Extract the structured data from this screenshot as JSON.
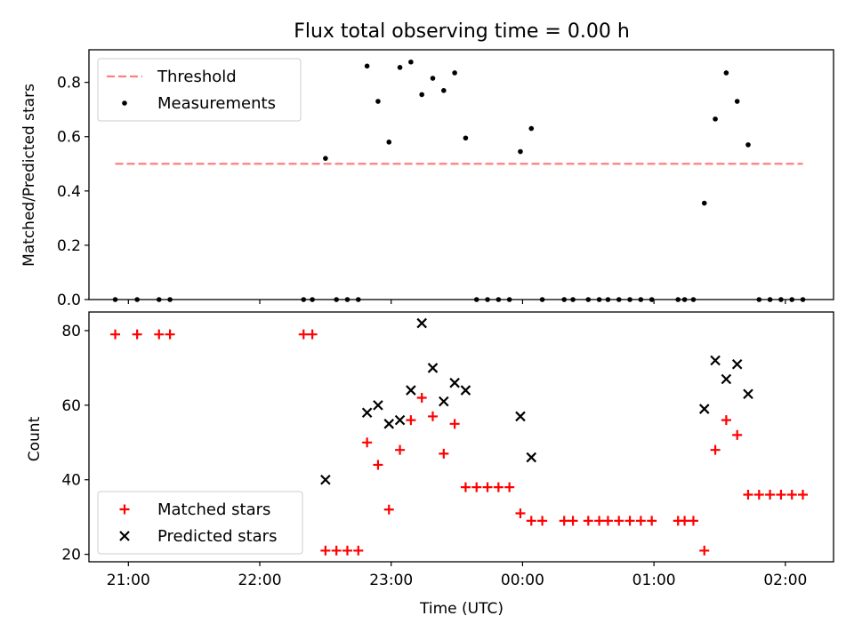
{
  "chart_data": [
    {
      "type": "scatter",
      "title": "Flux total observing time = 0.00 h",
      "xlabel": "",
      "ylabel": "Matched/Predicted stars",
      "ylim": [
        0,
        0.92
      ],
      "yticks": [
        0.0,
        0.2,
        0.4,
        0.6,
        0.8
      ],
      "ytick_labels": [
        "0.0",
        "0.2",
        "0.4",
        "0.6",
        "0.8"
      ],
      "xticks": [
        "21:00",
        "22:00",
        "23:00",
        "00:00",
        "01:00",
        "02:00"
      ],
      "xtick_labels_visible": false,
      "legend_position": "top-left",
      "threshold": {
        "name": "Threshold",
        "value": 0.5,
        "x_start": "20:54",
        "x_end": "02:08",
        "color": "#ff7f7f",
        "style": "dashed"
      },
      "series": [
        {
          "name": "Measurements",
          "color": "#000000",
          "marker": "dot",
          "points": [
            [
              "20:54",
              0.0
            ],
            [
              "21:04",
              0.0
            ],
            [
              "21:14",
              0.0
            ],
            [
              "21:19",
              0.0
            ],
            [
              "22:20",
              0.0
            ],
            [
              "22:24",
              0.0
            ],
            [
              "22:30",
              0.52
            ],
            [
              "22:35",
              0.0
            ],
            [
              "22:40",
              0.0
            ],
            [
              "22:45",
              0.0
            ],
            [
              "22:49",
              0.86
            ],
            [
              "22:54",
              0.73
            ],
            [
              "22:59",
              0.58
            ],
            [
              "23:04",
              0.855
            ],
            [
              "23:09",
              0.875
            ],
            [
              "23:14",
              0.755
            ],
            [
              "23:19",
              0.815
            ],
            [
              "23:24",
              0.77
            ],
            [
              "23:29",
              0.835
            ],
            [
              "23:34",
              0.595
            ],
            [
              "23:39",
              0.0
            ],
            [
              "23:44",
              0.0
            ],
            [
              "23:49",
              0.0
            ],
            [
              "23:54",
              0.0
            ],
            [
              "23:59",
              0.545
            ],
            [
              "00:04",
              0.63
            ],
            [
              "00:09",
              0.0
            ],
            [
              "00:19",
              0.0
            ],
            [
              "00:23",
              0.0
            ],
            [
              "00:30",
              0.0
            ],
            [
              "00:35",
              0.0
            ],
            [
              "00:39",
              0.0
            ],
            [
              "00:44",
              0.0
            ],
            [
              "00:49",
              0.0
            ],
            [
              "00:54",
              0.0
            ],
            [
              "00:59",
              0.0
            ],
            [
              "01:11",
              0.0
            ],
            [
              "01:14",
              0.0
            ],
            [
              "01:18",
              0.0
            ],
            [
              "01:23",
              0.355
            ],
            [
              "01:28",
              0.665
            ],
            [
              "01:33",
              0.835
            ],
            [
              "01:38",
              0.73
            ],
            [
              "01:43",
              0.57
            ],
            [
              "01:48",
              0.0
            ],
            [
              "01:53",
              0.0
            ],
            [
              "01:58",
              0.0
            ],
            [
              "02:03",
              0.0
            ],
            [
              "02:08",
              0.0
            ]
          ]
        }
      ]
    },
    {
      "type": "scatter",
      "title": "",
      "xlabel": "Time (UTC)",
      "ylabel": "Count",
      "ylim": [
        18,
        85
      ],
      "yticks": [
        20,
        40,
        60,
        80
      ],
      "ytick_labels": [
        "20",
        "40",
        "60",
        "80"
      ],
      "xticks": [
        "21:00",
        "22:00",
        "23:00",
        "00:00",
        "01:00",
        "02:00"
      ],
      "xtick_labels": [
        "21:00",
        "22:00",
        "23:00",
        "00:00",
        "01:00",
        "02:00"
      ],
      "legend_position": "bottom-left",
      "series": [
        {
          "name": "Matched stars",
          "color": "#ff0000",
          "marker": "plus",
          "points": [
            [
              "20:54",
              79
            ],
            [
              "21:04",
              79
            ],
            [
              "21:14",
              79
            ],
            [
              "21:19",
              79
            ],
            [
              "22:20",
              79
            ],
            [
              "22:24",
              79
            ],
            [
              "22:30",
              21
            ],
            [
              "22:35",
              21
            ],
            [
              "22:40",
              21
            ],
            [
              "22:45",
              21
            ],
            [
              "22:49",
              50
            ],
            [
              "22:54",
              44
            ],
            [
              "22:59",
              32
            ],
            [
              "23:04",
              48
            ],
            [
              "23:09",
              56
            ],
            [
              "23:14",
              62
            ],
            [
              "23:19",
              57
            ],
            [
              "23:24",
              47
            ],
            [
              "23:29",
              55
            ],
            [
              "23:34",
              38
            ],
            [
              "23:39",
              38
            ],
            [
              "23:44",
              38
            ],
            [
              "23:49",
              38
            ],
            [
              "23:54",
              38
            ],
            [
              "23:59",
              31
            ],
            [
              "00:04",
              29
            ],
            [
              "00:09",
              29
            ],
            [
              "00:19",
              29
            ],
            [
              "00:23",
              29
            ],
            [
              "00:30",
              29
            ],
            [
              "00:35",
              29
            ],
            [
              "00:39",
              29
            ],
            [
              "00:44",
              29
            ],
            [
              "00:49",
              29
            ],
            [
              "00:54",
              29
            ],
            [
              "00:59",
              29
            ],
            [
              "01:11",
              29
            ],
            [
              "01:14",
              29
            ],
            [
              "01:18",
              29
            ],
            [
              "01:23",
              21
            ],
            [
              "01:28",
              48
            ],
            [
              "01:33",
              56
            ],
            [
              "01:38",
              52
            ],
            [
              "01:43",
              36
            ],
            [
              "01:48",
              36
            ],
            [
              "01:53",
              36
            ],
            [
              "01:58",
              36
            ],
            [
              "02:03",
              36
            ],
            [
              "02:08",
              36
            ]
          ]
        },
        {
          "name": "Predicted stars",
          "color": "#000000",
          "marker": "x",
          "points": [
            [
              "22:30",
              40
            ],
            [
              "22:49",
              58
            ],
            [
              "22:54",
              60
            ],
            [
              "22:59",
              55
            ],
            [
              "23:04",
              56
            ],
            [
              "23:09",
              64
            ],
            [
              "23:14",
              82
            ],
            [
              "23:19",
              70
            ],
            [
              "23:24",
              61
            ],
            [
              "23:29",
              66
            ],
            [
              "23:34",
              64
            ],
            [
              "23:59",
              57
            ],
            [
              "00:04",
              46
            ],
            [
              "01:23",
              59
            ],
            [
              "01:28",
              72
            ],
            [
              "01:33",
              67
            ],
            [
              "01:38",
              71
            ],
            [
              "01:43",
              63
            ]
          ]
        }
      ]
    }
  ]
}
